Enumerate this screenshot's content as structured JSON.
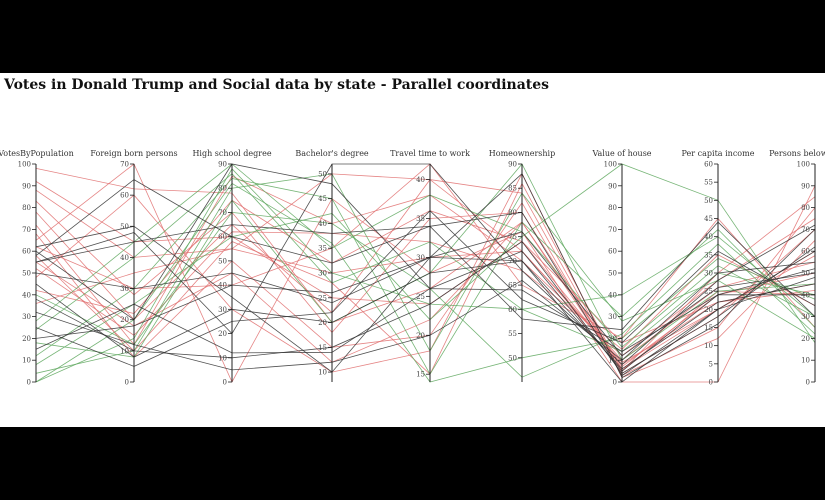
{
  "title": "Votes in Donald Trump and Social data by state - Parallel coordinates",
  "chart_data": {
    "type": "parallel-coordinates",
    "title": "Votes in Donald Trump and Social data by state - Parallel coordinates",
    "axes": [
      {
        "label": "VotesByPopulation",
        "min": 0,
        "max": 100,
        "ticks": [
          0,
          10,
          20,
          30,
          40,
          50,
          60,
          70,
          80,
          90,
          100
        ]
      },
      {
        "label": "Foreign born persons",
        "min": 0,
        "max": 70,
        "ticks": [
          0,
          10,
          20,
          30,
          40,
          50,
          60,
          70
        ]
      },
      {
        "label": "High school degree",
        "min": 0,
        "max": 90,
        "ticks": [
          0,
          10,
          20,
          30,
          40,
          50,
          60,
          70,
          80,
          90
        ]
      },
      {
        "label": "Bachelor's degree",
        "min": 8,
        "max": 52,
        "ticks": [
          10,
          15,
          20,
          25,
          30,
          35,
          40,
          45,
          50
        ]
      },
      {
        "label": "Travel time to work",
        "min": 14,
        "max": 42,
        "ticks": [
          15,
          20,
          25,
          30,
          35,
          40
        ]
      },
      {
        "label": "Homeownership",
        "min": 45,
        "max": 90,
        "ticks": [
          50,
          55,
          60,
          65,
          70,
          75,
          80,
          85,
          90
        ]
      },
      {
        "label": "Value of house",
        "min": 0,
        "max": 100,
        "ticks": [
          0,
          10,
          20,
          30,
          40,
          50,
          60,
          70,
          80,
          90,
          100
        ]
      },
      {
        "label": "Per capita income",
        "min": 0,
        "max": 60,
        "ticks": [
          0,
          5,
          10,
          15,
          20,
          25,
          30,
          35,
          40,
          45,
          50,
          55,
          60
        ]
      },
      {
        "label": "Persons below poverty",
        "min": 0,
        "max": 100,
        "ticks": [
          0,
          10,
          20,
          30,
          40,
          50,
          60,
          70,
          80,
          90,
          100
        ]
      }
    ],
    "series_colors": {
      "red": "#e07070",
      "green": "#5fa85f",
      "black": "#333333"
    },
    "lines": [
      {
        "color": "red",
        "values": [
          98,
          62,
          78,
          20,
          26,
          78,
          5,
          25,
          40
        ]
      },
      {
        "color": "red",
        "values": [
          92,
          45,
          60,
          25,
          24,
          74,
          8,
          22,
          45
        ]
      },
      {
        "color": "red",
        "values": [
          88,
          40,
          55,
          30,
          30,
          72,
          10,
          26,
          55
        ]
      },
      {
        "color": "red",
        "values": [
          83,
          28,
          70,
          18,
          35,
          80,
          6,
          20,
          60
        ]
      },
      {
        "color": "red",
        "values": [
          78,
          20,
          65,
          22,
          40,
          84,
          4,
          18,
          70
        ]
      },
      {
        "color": "red",
        "values": [
          72,
          12,
          85,
          40,
          38,
          70,
          12,
          28,
          75
        ]
      },
      {
        "color": "red",
        "values": [
          68,
          8,
          50,
          15,
          20,
          82,
          3,
          15,
          80
        ]
      },
      {
        "color": "red",
        "values": [
          65,
          70,
          0,
          45,
          28,
          76,
          0,
          0,
          90
        ]
      },
      {
        "color": "red",
        "values": [
          62,
          30,
          40,
          35,
          42,
          65,
          20,
          45,
          25
        ]
      },
      {
        "color": "red",
        "values": [
          58,
          10,
          58,
          28,
          15,
          86,
          5,
          30,
          85
        ]
      },
      {
        "color": "red",
        "values": [
          55,
          18,
          45,
          12,
          22,
          78,
          7,
          24,
          50
        ]
      },
      {
        "color": "red",
        "values": [
          52,
          15,
          62,
          38,
          32,
          68,
          15,
          35,
          35
        ]
      },
      {
        "color": "red",
        "values": [
          48,
          60,
          30,
          10,
          18,
          88,
          2,
          12,
          65
        ]
      },
      {
        "color": "red",
        "values": [
          42,
          22,
          75,
          32,
          36,
          74,
          18,
          22,
          42
        ]
      },
      {
        "color": "red",
        "values": [
          36,
          35,
          55,
          50,
          40,
          72,
          9,
          20,
          58
        ]
      },
      {
        "color": "green",
        "values": [
          0,
          14,
          88,
          30,
          24,
          60,
          40,
          40,
          30
        ]
      },
      {
        "color": "green",
        "values": [
          4,
          10,
          80,
          50,
          18,
          84,
          28,
          28,
          20
        ]
      },
      {
        "color": "green",
        "values": [
          8,
          25,
          60,
          42,
          22,
          75,
          100,
          50,
          18
        ]
      },
      {
        "color": "green",
        "values": [
          12,
          30,
          84,
          45,
          15,
          78,
          30,
          42,
          25
        ]
      },
      {
        "color": "green",
        "values": [
          18,
          8,
          75,
          20,
          28,
          90,
          10,
          25,
          45
        ]
      },
      {
        "color": "green",
        "values": [
          24,
          40,
          86,
          28,
          32,
          60,
          14,
          30,
          40
        ]
      },
      {
        "color": "green",
        "values": [
          28,
          45,
          90,
          35,
          38,
          76,
          16,
          32,
          30
        ]
      },
      {
        "color": "green",
        "values": [
          0,
          20,
          82,
          36,
          14,
          50,
          20,
          34,
          38
        ]
      },
      {
        "color": "green",
        "values": [
          40,
          12,
          70,
          40,
          26,
          46,
          22,
          38,
          22
        ]
      },
      {
        "color": "black",
        "values": [
          62,
          50,
          35,
          10,
          30,
          88,
          2,
          16,
          70
        ]
      },
      {
        "color": "black",
        "values": [
          60,
          20,
          90,
          48,
          26,
          72,
          5,
          24,
          40
        ]
      },
      {
        "color": "black",
        "values": [
          58,
          65,
          60,
          32,
          34,
          80,
          3,
          20,
          60
        ]
      },
      {
        "color": "black",
        "values": [
          55,
          48,
          20,
          52,
          42,
          68,
          8,
          28,
          72
        ]
      },
      {
        "color": "black",
        "values": [
          50,
          30,
          45,
          24,
          30,
          76,
          12,
          26,
          50
        ]
      },
      {
        "color": "black",
        "values": [
          45,
          8,
          30,
          20,
          28,
          70,
          6,
          22,
          45
        ]
      },
      {
        "color": "black",
        "values": [
          38,
          10,
          10,
          15,
          24,
          74,
          4,
          18,
          62
        ]
      },
      {
        "color": "black",
        "values": [
          32,
          12,
          5,
          12,
          20,
          66,
          10,
          30,
          55
        ]
      },
      {
        "color": "black",
        "values": [
          25,
          5,
          25,
          22,
          36,
          62,
          18,
          36,
          35
        ]
      },
      {
        "color": "black",
        "values": [
          20,
          18,
          40,
          26,
          30,
          70,
          0,
          20,
          48
        ]
      },
      {
        "color": "black",
        "values": [
          15,
          25,
          12,
          14,
          26,
          64,
          14,
          24,
          52
        ]
      },
      {
        "color": "black",
        "values": [
          55,
          45,
          65,
          38,
          34,
          58,
          24,
          44,
          30
        ]
      }
    ]
  }
}
